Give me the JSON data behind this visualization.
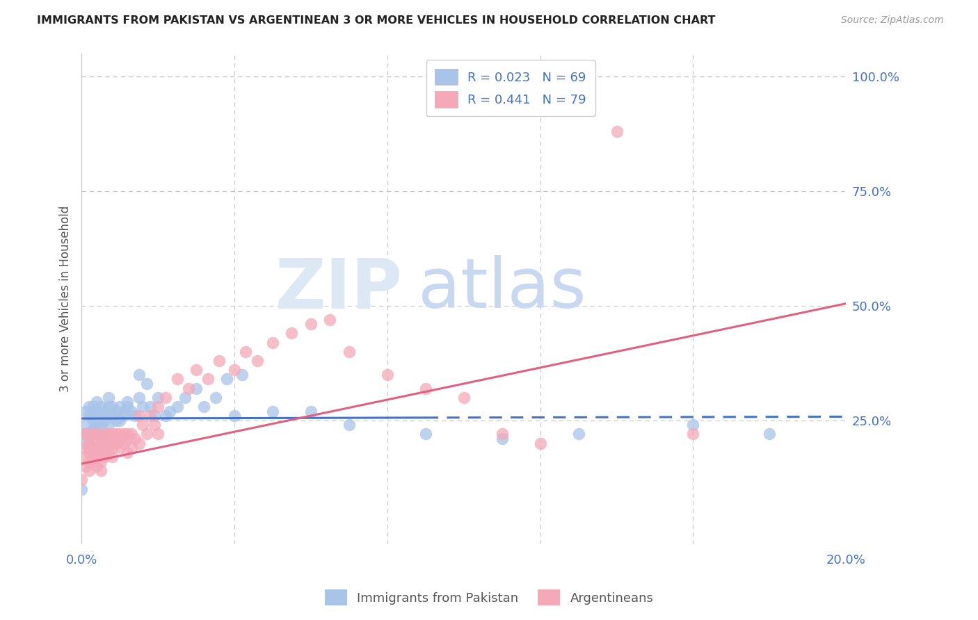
{
  "title": "IMMIGRANTS FROM PAKISTAN VS ARGENTINEAN 3 OR MORE VEHICLES IN HOUSEHOLD CORRELATION CHART",
  "source": "Source: ZipAtlas.com",
  "ylabel": "3 or more Vehicles in Household",
  "xlim": [
    0.0,
    0.2
  ],
  "ylim": [
    -0.02,
    1.05
  ],
  "color_blue": "#a8c4e8",
  "color_pink": "#f4a8b8",
  "line_blue": "#4472c4",
  "line_pink": "#e06080",
  "background": "#ffffff",
  "grid_color": "#c8c8c8",
  "blue_line_x0": 0.0,
  "blue_line_x1": 0.2,
  "blue_line_y0": 0.254,
  "blue_line_y1": 0.258,
  "pink_line_x0": 0.0,
  "pink_line_x1": 0.2,
  "pink_line_y0": 0.155,
  "pink_line_y1": 0.505,
  "blue_x": [
    0.001,
    0.001,
    0.001,
    0.002,
    0.002,
    0.002,
    0.002,
    0.003,
    0.003,
    0.003,
    0.003,
    0.003,
    0.004,
    0.004,
    0.004,
    0.005,
    0.005,
    0.005,
    0.005,
    0.006,
    0.006,
    0.007,
    0.007,
    0.007,
    0.008,
    0.008,
    0.009,
    0.009,
    0.01,
    0.01,
    0.011,
    0.011,
    0.012,
    0.012,
    0.013,
    0.014,
    0.015,
    0.015,
    0.016,
    0.017,
    0.018,
    0.019,
    0.02,
    0.022,
    0.023,
    0.025,
    0.027,
    0.03,
    0.032,
    0.035,
    0.038,
    0.04,
    0.042,
    0.05,
    0.06,
    0.07,
    0.09,
    0.11,
    0.13,
    0.16,
    0.18,
    0.0,
    0.001,
    0.002,
    0.003,
    0.004,
    0.005,
    0.006,
    0.008
  ],
  "blue_y": [
    0.24,
    0.2,
    0.27,
    0.22,
    0.26,
    0.28,
    0.21,
    0.25,
    0.27,
    0.23,
    0.28,
    0.26,
    0.29,
    0.24,
    0.27,
    0.28,
    0.26,
    0.24,
    0.22,
    0.27,
    0.26,
    0.28,
    0.3,
    0.24,
    0.28,
    0.26,
    0.27,
    0.25,
    0.28,
    0.25,
    0.27,
    0.26,
    0.28,
    0.29,
    0.27,
    0.26,
    0.35,
    0.3,
    0.28,
    0.33,
    0.28,
    0.26,
    0.3,
    0.26,
    0.27,
    0.28,
    0.3,
    0.32,
    0.28,
    0.3,
    0.34,
    0.26,
    0.35,
    0.27,
    0.27,
    0.24,
    0.22,
    0.21,
    0.22,
    0.24,
    0.22,
    0.1,
    0.22,
    0.22,
    0.23,
    0.25,
    0.26,
    0.25,
    0.26
  ],
  "pink_x": [
    0.001,
    0.001,
    0.001,
    0.001,
    0.002,
    0.002,
    0.002,
    0.002,
    0.003,
    0.003,
    0.003,
    0.003,
    0.004,
    0.004,
    0.004,
    0.004,
    0.005,
    0.005,
    0.005,
    0.005,
    0.006,
    0.006,
    0.006,
    0.007,
    0.007,
    0.007,
    0.008,
    0.008,
    0.008,
    0.009,
    0.009,
    0.01,
    0.01,
    0.011,
    0.011,
    0.012,
    0.012,
    0.013,
    0.013,
    0.014,
    0.015,
    0.016,
    0.017,
    0.018,
    0.019,
    0.02,
    0.022,
    0.025,
    0.028,
    0.03,
    0.033,
    0.036,
    0.04,
    0.043,
    0.046,
    0.05,
    0.055,
    0.06,
    0.065,
    0.07,
    0.08,
    0.09,
    0.1,
    0.11,
    0.12,
    0.0,
    0.001,
    0.002,
    0.003,
    0.004,
    0.005,
    0.006,
    0.008,
    0.01,
    0.012,
    0.015,
    0.02,
    0.14,
    0.16
  ],
  "pink_y": [
    0.22,
    0.19,
    0.17,
    0.15,
    0.2,
    0.18,
    0.16,
    0.14,
    0.2,
    0.18,
    0.16,
    0.22,
    0.19,
    0.17,
    0.15,
    0.22,
    0.2,
    0.18,
    0.16,
    0.14,
    0.21,
    0.19,
    0.17,
    0.22,
    0.2,
    0.18,
    0.21,
    0.19,
    0.17,
    0.22,
    0.2,
    0.21,
    0.19,
    0.22,
    0.2,
    0.21,
    0.18,
    0.22,
    0.19,
    0.21,
    0.26,
    0.24,
    0.22,
    0.26,
    0.24,
    0.28,
    0.3,
    0.34,
    0.32,
    0.36,
    0.34,
    0.38,
    0.36,
    0.4,
    0.38,
    0.42,
    0.44,
    0.46,
    0.47,
    0.4,
    0.35,
    0.32,
    0.3,
    0.22,
    0.2,
    0.12,
    0.22,
    0.2,
    0.18,
    0.22,
    0.2,
    0.22,
    0.22,
    0.22,
    0.22,
    0.2,
    0.22,
    0.88,
    0.22
  ]
}
